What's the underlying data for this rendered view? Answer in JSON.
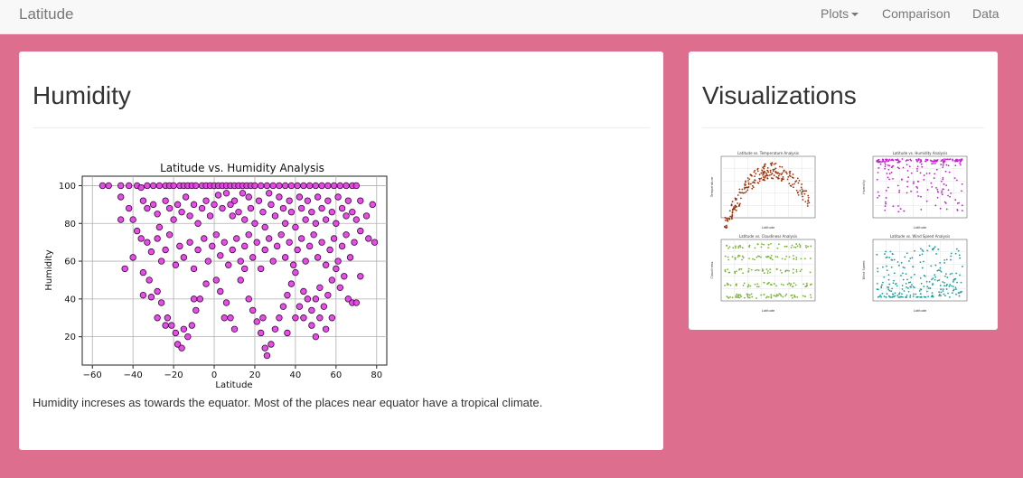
{
  "navbar": {
    "brand": "Latitude",
    "items": [
      "Plots",
      "Comparison",
      "Data"
    ]
  },
  "main": {
    "title": "Humidity",
    "caption": "Humidity increses as towards the equator. Most of the places near equator have a tropical climate."
  },
  "side": {
    "title": "Visualizations",
    "thumbnails": [
      {
        "name": "temperature",
        "title": "Latitude vs. Temperature Analysis",
        "xlabel": "Latitude",
        "ylabel": "Temperature",
        "color": "#a0320a"
      },
      {
        "name": "humidity",
        "title": "Latitude vs. Humidity Analysis",
        "xlabel": "Latitude",
        "ylabel": "Humidity",
        "color": "#c51ed0"
      },
      {
        "name": "cloudiness",
        "title": "Latitude vs. Cloudiness Analysis",
        "xlabel": "Latitude",
        "ylabel": "Cloudiness",
        "color": "#78b435"
      },
      {
        "name": "wind-speed",
        "title": "Latitude vs. Wind Speed Analysis",
        "xlabel": "Latitude",
        "ylabel": "Wind Speed",
        "color": "#1a9e9e"
      }
    ]
  },
  "colors": {
    "background": "#dd6e8e",
    "point_fill": "#e43be6",
    "point_edge": "#3a0a3a"
  },
  "chart_data": {
    "type": "scatter",
    "title": "Latitude vs. Humidity Analysis",
    "xlabel": "Latitude",
    "ylabel": "Humidity",
    "xlim": [
      -65,
      85
    ],
    "ylim": [
      5,
      105
    ],
    "xticks": [
      -60,
      -40,
      -20,
      0,
      20,
      40,
      60,
      80
    ],
    "yticks": [
      20,
      40,
      60,
      80,
      100
    ],
    "grid": true,
    "points": [
      [
        -55,
        100
      ],
      [
        -52,
        100
      ],
      [
        -46,
        100
      ],
      [
        -42,
        100
      ],
      [
        -38,
        100
      ],
      [
        -36,
        99
      ],
      [
        -33,
        100
      ],
      [
        -30,
        100
      ],
      [
        -27,
        100
      ],
      [
        -24,
        100
      ],
      [
        -22,
        100
      ],
      [
        -20,
        100
      ],
      [
        -17,
        100
      ],
      [
        -15,
        100
      ],
      [
        -13,
        100
      ],
      [
        -11,
        100
      ],
      [
        -9,
        100
      ],
      [
        -6,
        100
      ],
      [
        -4,
        100
      ],
      [
        -2,
        100
      ],
      [
        0,
        100
      ],
      [
        2,
        100
      ],
      [
        4,
        100
      ],
      [
        6,
        100
      ],
      [
        8,
        100
      ],
      [
        10,
        100
      ],
      [
        12,
        100
      ],
      [
        14,
        100
      ],
      [
        16,
        100
      ],
      [
        18,
        100
      ],
      [
        20,
        100
      ],
      [
        23,
        100
      ],
      [
        26,
        100
      ],
      [
        29,
        100
      ],
      [
        32,
        100
      ],
      [
        35,
        100
      ],
      [
        38,
        100
      ],
      [
        41,
        100
      ],
      [
        44,
        100
      ],
      [
        47,
        100
      ],
      [
        50,
        100
      ],
      [
        53,
        100
      ],
      [
        56,
        100
      ],
      [
        59,
        100
      ],
      [
        62,
        100
      ],
      [
        65,
        100
      ],
      [
        68,
        100
      ],
      [
        70,
        100
      ],
      [
        -46,
        94
      ],
      [
        -42,
        88
      ],
      [
        -40,
        82
      ],
      [
        -46,
        82
      ],
      [
        -35,
        92
      ],
      [
        -33,
        88
      ],
      [
        -38,
        76
      ],
      [
        -36,
        72
      ],
      [
        -30,
        90
      ],
      [
        -28,
        85
      ],
      [
        -27,
        78
      ],
      [
        -24,
        92
      ],
      [
        -22,
        88
      ],
      [
        -20,
        82
      ],
      [
        -18,
        90
      ],
      [
        -16,
        86
      ],
      [
        -14,
        94
      ],
      [
        -12,
        84
      ],
      [
        -10,
        90
      ],
      [
        -8,
        80
      ],
      [
        -6,
        88
      ],
      [
        -4,
        92
      ],
      [
        -2,
        84
      ],
      [
        0,
        90
      ],
      [
        2,
        95
      ],
      [
        4,
        88
      ],
      [
        6,
        96
      ],
      [
        8,
        90
      ],
      [
        9,
        84
      ],
      [
        10,
        92
      ],
      [
        12,
        86
      ],
      [
        14,
        96
      ],
      [
        15,
        82
      ],
      [
        17,
        94
      ],
      [
        18,
        88
      ],
      [
        20,
        80
      ],
      [
        22,
        92
      ],
      [
        24,
        86
      ],
      [
        25,
        78
      ],
      [
        27,
        96
      ],
      [
        28,
        90
      ],
      [
        30,
        84
      ],
      [
        32,
        94
      ],
      [
        34,
        88
      ],
      [
        35,
        80
      ],
      [
        37,
        92
      ],
      [
        38,
        86
      ],
      [
        40,
        78
      ],
      [
        42,
        94
      ],
      [
        43,
        88
      ],
      [
        45,
        82
      ],
      [
        46,
        92
      ],
      [
        48,
        86
      ],
      [
        50,
        80
      ],
      [
        51,
        94
      ],
      [
        53,
        88
      ],
      [
        55,
        82
      ],
      [
        56,
        92
      ],
      [
        58,
        86
      ],
      [
        60,
        80
      ],
      [
        61,
        94
      ],
      [
        63,
        88
      ],
      [
        65,
        84
      ],
      [
        66,
        92
      ],
      [
        68,
        86
      ],
      [
        70,
        82
      ],
      [
        72,
        92
      ],
      [
        75,
        84
      ],
      [
        78,
        90
      ],
      [
        -33,
        70
      ],
      [
        -31,
        65
      ],
      [
        -28,
        72
      ],
      [
        -26,
        60
      ],
      [
        -24,
        66
      ],
      [
        -22,
        74
      ],
      [
        -19,
        58
      ],
      [
        -17,
        68
      ],
      [
        -15,
        62
      ],
      [
        -12,
        70
      ],
      [
        -10,
        56
      ],
      [
        -8,
        66
      ],
      [
        -5,
        72
      ],
      [
        -3,
        60
      ],
      [
        -1,
        68
      ],
      [
        1,
        74
      ],
      [
        3,
        63
      ],
      [
        5,
        70
      ],
      [
        7,
        58
      ],
      [
        9,
        66
      ],
      [
        11,
        72
      ],
      [
        13,
        60
      ],
      [
        15,
        68
      ],
      [
        17,
        74
      ],
      [
        19,
        62
      ],
      [
        21,
        70
      ],
      [
        23,
        56
      ],
      [
        25,
        66
      ],
      [
        27,
        72
      ],
      [
        29,
        60
      ],
      [
        31,
        68
      ],
      [
        33,
        74
      ],
      [
        35,
        62
      ],
      [
        37,
        70
      ],
      [
        39,
        58
      ],
      [
        41,
        66
      ],
      [
        43,
        72
      ],
      [
        45,
        60
      ],
      [
        47,
        68
      ],
      [
        49,
        74
      ],
      [
        51,
        62
      ],
      [
        53,
        70
      ],
      [
        55,
        58
      ],
      [
        57,
        66
      ],
      [
        59,
        72
      ],
      [
        61,
        60
      ],
      [
        63,
        68
      ],
      [
        65,
        74
      ],
      [
        67,
        62
      ],
      [
        69,
        70
      ],
      [
        72,
        76
      ],
      [
        76,
        72
      ],
      [
        79,
        70
      ],
      [
        -44,
        56
      ],
      [
        -40,
        62
      ],
      [
        -35,
        54
      ],
      [
        -32,
        50
      ],
      [
        -28,
        44
      ],
      [
        -26,
        38
      ],
      [
        -23,
        30
      ],
      [
        -21,
        26
      ],
      [
        -19,
        22
      ],
      [
        -18,
        16
      ],
      [
        -16,
        14
      ],
      [
        -13,
        20
      ],
      [
        -11,
        26
      ],
      [
        -9,
        34
      ],
      [
        -7,
        40
      ],
      [
        -4,
        48
      ],
      [
        1,
        50
      ],
      [
        3,
        44
      ],
      [
        6,
        38
      ],
      [
        8,
        30
      ],
      [
        10,
        24
      ],
      [
        13,
        50
      ],
      [
        15,
        56
      ],
      [
        17,
        40
      ],
      [
        19,
        34
      ],
      [
        21,
        28
      ],
      [
        23,
        22
      ],
      [
        25,
        14
      ],
      [
        26,
        10
      ],
      [
        28,
        16
      ],
      [
        30,
        24
      ],
      [
        32,
        30
      ],
      [
        34,
        36
      ],
      [
        36,
        42
      ],
      [
        38,
        48
      ],
      [
        40,
        54
      ],
      [
        42,
        36
      ],
      [
        44,
        30
      ],
      [
        46,
        40
      ],
      [
        48,
        26
      ],
      [
        50,
        20
      ],
      [
        52,
        30
      ],
      [
        54,
        36
      ],
      [
        56,
        42
      ],
      [
        58,
        50
      ],
      [
        60,
        56
      ],
      [
        62,
        46
      ],
      [
        64,
        52
      ],
      [
        66,
        40
      ],
      [
        68,
        38
      ],
      [
        70,
        38
      ],
      [
        72,
        52
      ],
      [
        50,
        40
      ],
      [
        52,
        46
      ],
      [
        44,
        44
      ],
      [
        40,
        30
      ],
      [
        36,
        22
      ],
      [
        24,
        30
      ],
      [
        -28,
        30
      ],
      [
        -24,
        26
      ],
      [
        -35,
        42
      ],
      [
        -31,
        41
      ],
      [
        -15,
        24
      ],
      [
        -10,
        40
      ],
      [
        5,
        30
      ],
      [
        55,
        24
      ],
      [
        58,
        30
      ],
      [
        48,
        34
      ]
    ]
  }
}
